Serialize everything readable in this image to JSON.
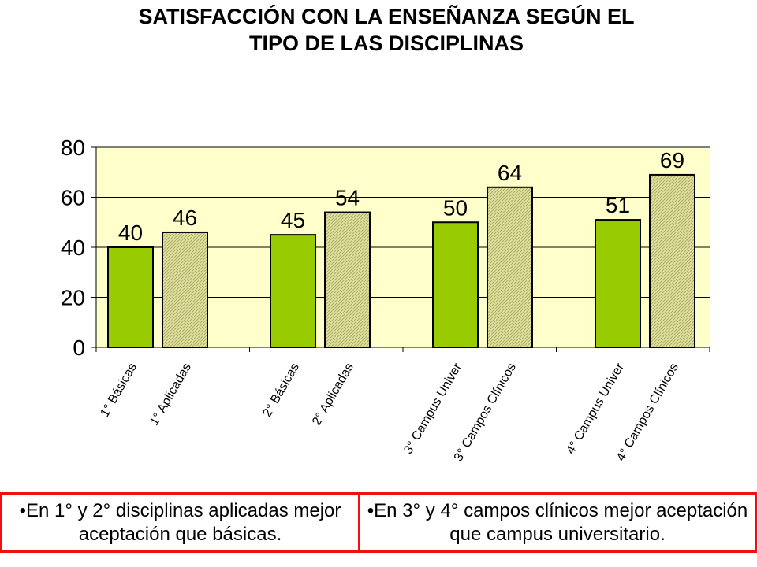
{
  "chart_data": {
    "type": "bar",
    "title_lines": [
      "SATISFACCIÓN CON LA ENSEÑANZA SEGÚN EL",
      "TIPO DE LAS DISCIPLINAS"
    ],
    "categories": [
      "1° Básicas",
      "1° Aplicadas",
      "2° Básicas",
      "2° Aplicadas",
      "3° Campus Univer",
      "3° Campos Clínicos",
      "4° Campus Univer",
      "4° Campos Clínicos"
    ],
    "values": [
      40,
      46,
      45,
      54,
      50,
      64,
      51,
      69
    ],
    "data_labels": [
      "40",
      "46",
      "45",
      "54",
      "50",
      "64",
      "51",
      "69"
    ],
    "y_ticks": [
      "0",
      "20",
      "40",
      "60",
      "80"
    ],
    "ylim": [
      0,
      80
    ],
    "grid": true,
    "legend": "none",
    "colors": {
      "solid_bar": "#99cc00",
      "hatched_bar": "#d4d48a",
      "plot_background": "#ffffcc"
    }
  },
  "notes": {
    "left": "•En 1° y 2° disciplinas aplicadas mejor aceptación que básicas.",
    "right": "•En 3° y 4° campos clínicos mejor aceptación que campus universitario."
  }
}
